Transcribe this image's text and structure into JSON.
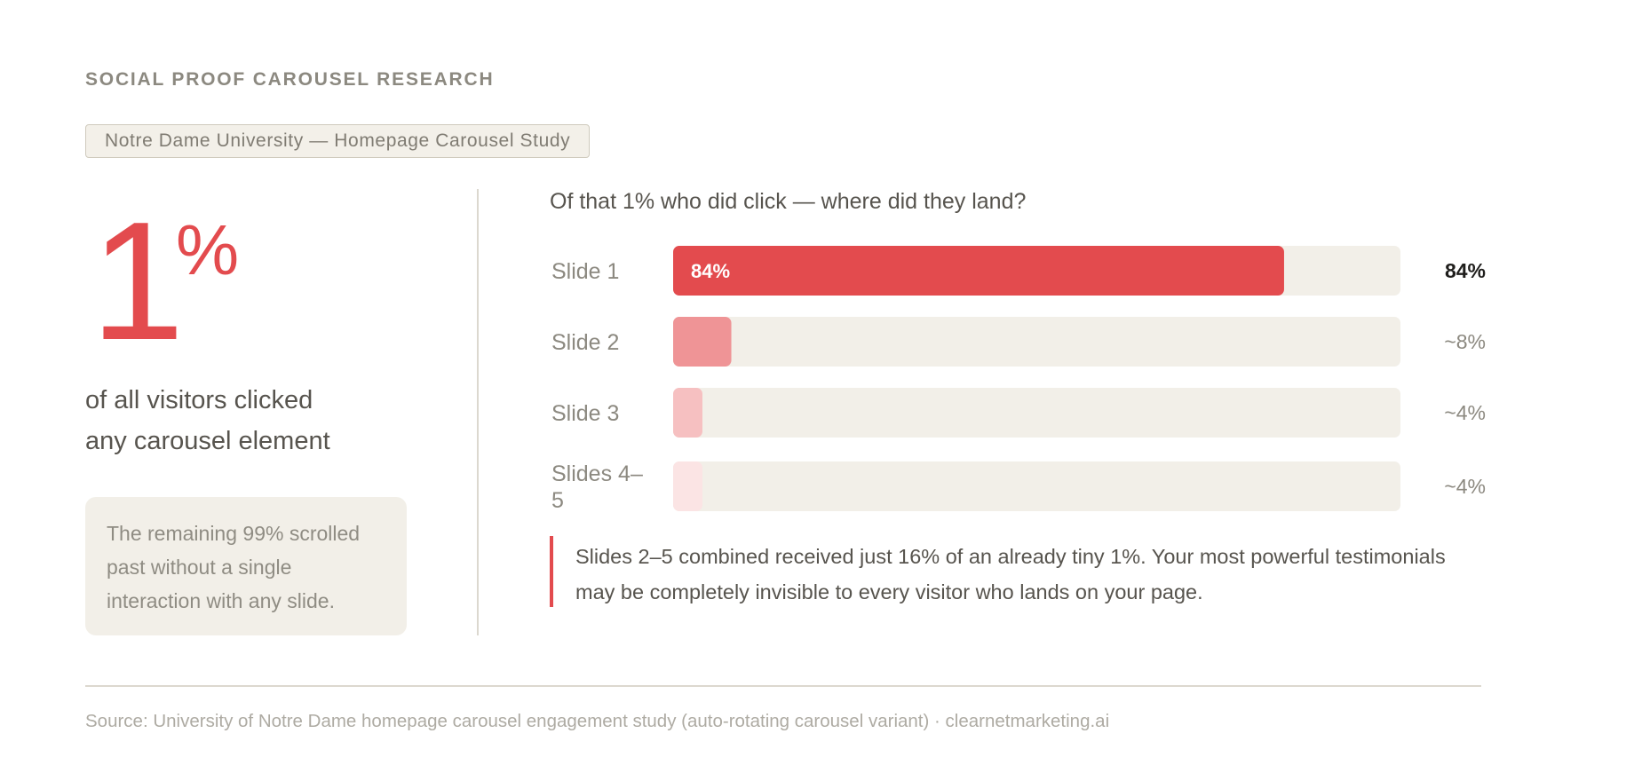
{
  "header": {
    "eyebrow": "SOCIAL PROOF CAROUSEL RESEARCH",
    "study_tag": "Notre Dame University — Homepage Carousel Study"
  },
  "stat": {
    "number": "1",
    "unit": "%",
    "caption_line1": "of all visitors clicked",
    "caption_line2": "any carousel element",
    "note": "The remaining 99% scrolled past without a single interaction with any slide."
  },
  "chart_data": {
    "type": "bar",
    "orientation": "horizontal",
    "title": "Of that 1% who did click — where did they land?",
    "categories": [
      "Slide 1",
      "Slide 2",
      "Slide 3",
      "Slides 4–5"
    ],
    "values": [
      84,
      8,
      4,
      4
    ],
    "value_labels": [
      "84%",
      "~8%",
      "~4%",
      "~4%"
    ],
    "inbar_labels": [
      "84%",
      "",
      "",
      ""
    ],
    "xlim": [
      0,
      100
    ],
    "unit": "%",
    "colors": [
      "#e34b4e",
      "#ef9496",
      "#f6c0c1",
      "#fbe4e4"
    ],
    "track_color": "#f2efe8",
    "grid": false
  },
  "callout": {
    "text": "Slides 2–5 combined received just 16% of an already tiny 1%. Your most powerful testimonials may be completely invisible to every visitor who lands on your page."
  },
  "footer": {
    "source": "Source: University of Notre Dame homepage carousel engagement study (auto-rotating carousel variant) · clearnetmarketing.ai"
  },
  "colors": {
    "accent": "#e34b4e",
    "muted_text": "#8c8980",
    "body_text": "#57544e",
    "panel_bg": "#f2efe8"
  }
}
